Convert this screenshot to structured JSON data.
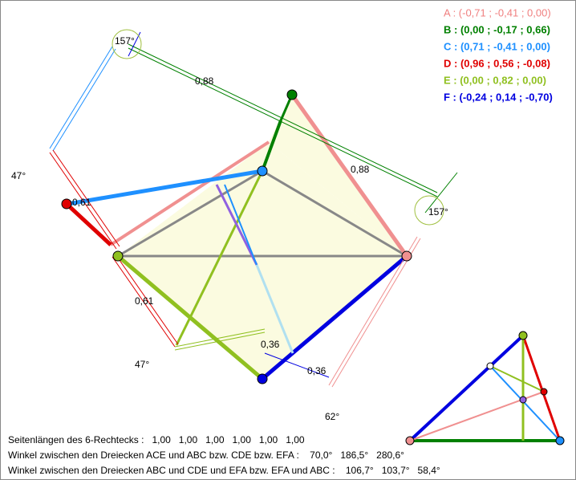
{
  "points": [
    {
      "text": "A : (-0,71 ; -0,41 ; 0,00)",
      "color": "#f08080"
    },
    {
      "text": "B : (0,00 ; -0,17 ; 0,66)",
      "color": "#008000"
    },
    {
      "text": "C : (0,71 ; -0,41 ; 0,00)",
      "color": "#1e90ff"
    },
    {
      "text": "D : (0,96 ; 0,56 ; -0,08)",
      "color": "#e00000"
    },
    {
      "text": "E : (0,00 ; 0,82 ; 0,00)",
      "color": "#90c020"
    },
    {
      "text": "F : (-0,24 ; 0,14 ; -0,70)",
      "color": "#0000e0"
    }
  ],
  "measures": {
    "angle_top": "157°",
    "angle_right": "157°",
    "angle_left": "47°",
    "angle_bottom_left": "47°",
    "angle_bottom": "62°",
    "side_top": "0,88",
    "side_right": "0,88",
    "side_left": "0,61",
    "side_lower_left": "0,61",
    "side_mid": "0,36",
    "side_lower_right": "0,36"
  },
  "info": [
    "Seitenlängen des 6-Rechtecks :   1,00   1,00   1,00   1,00   1,00   1,00",
    "Winkel zwischen den Dreiecken ACE und ABC bzw. CDE bzw. EFA :    70,0°   186,5°   280,6°",
    "Winkel zwischen den Dreiecken ABC und CDE und EFA bzw. EFA und ABC :    106,7°   103,7°   58,4°"
  ]
}
